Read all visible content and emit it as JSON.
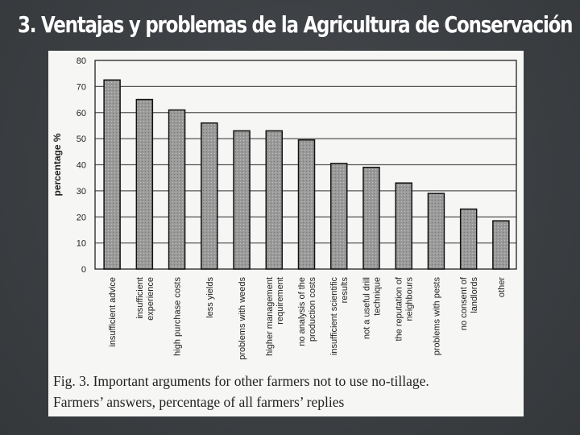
{
  "slide": {
    "title": "3.  Ventajas y problemas de la Agricultura de Conservación"
  },
  "caption": {
    "line1": "Fig. 3. Important arguments for other farmers not to use no-tillage.",
    "line2": "Farmers’ answers, percentage of all farmers’ replies"
  },
  "chart_data": {
    "type": "bar",
    "title": "",
    "xlabel": "",
    "ylabel": "percentage %",
    "ylim": [
      0,
      80
    ],
    "yticks": [
      0,
      10,
      20,
      30,
      40,
      50,
      60,
      70,
      80
    ],
    "grid": true,
    "categories": [
      [
        "insufficient advice"
      ],
      [
        "insufficient",
        "experience"
      ],
      [
        "high purchase costs"
      ],
      [
        "less yields"
      ],
      [
        "problems with weeds"
      ],
      [
        "higher management",
        "requirement"
      ],
      [
        "no analysis of the",
        "production costs"
      ],
      [
        "insufficient scientific",
        "results"
      ],
      [
        "not a useful drill",
        "technique"
      ],
      [
        "the reputation of",
        "neighbours"
      ],
      [
        "problems with pests"
      ],
      [
        "no consent of",
        "landlords"
      ],
      [
        "other"
      ]
    ],
    "values": [
      72.5,
      65,
      61,
      56,
      53,
      53,
      49.5,
      40.5,
      39,
      33,
      29,
      23,
      18.5
    ],
    "bar_color": "#9a9a9a"
  }
}
